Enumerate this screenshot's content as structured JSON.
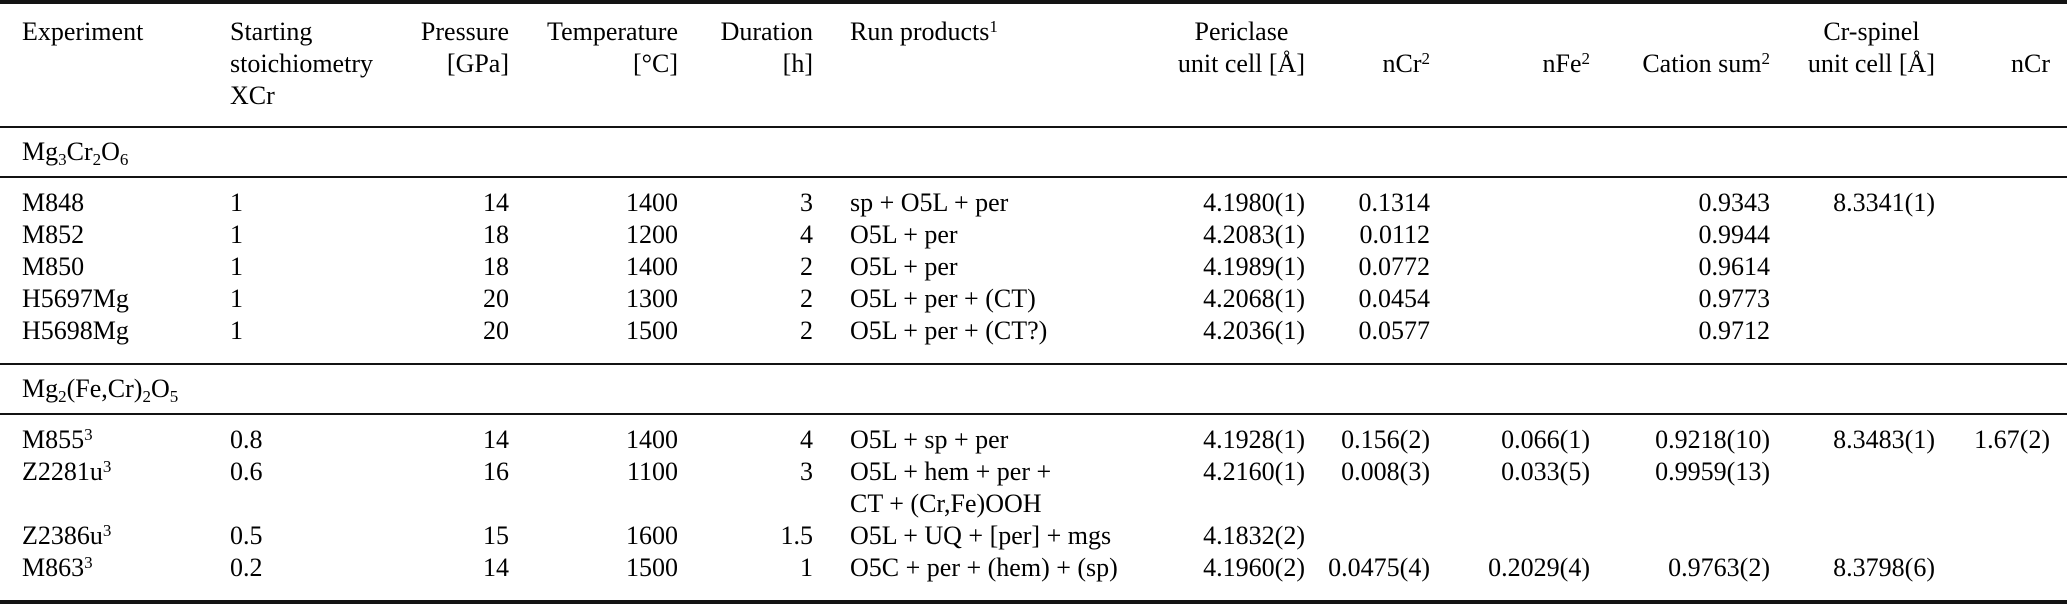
{
  "table": {
    "columns": [
      {
        "id": "experiment",
        "align": "left",
        "header_lines": [
          "Experiment",
          "",
          ""
        ]
      },
      {
        "id": "starting-stoichiometry",
        "align": "left",
        "header_lines": [
          "Starting",
          "stoichiometry",
          "XCr"
        ]
      },
      {
        "id": "pressure",
        "align": "right",
        "header_lines": [
          "Pressure",
          "[GPa]",
          ""
        ]
      },
      {
        "id": "temperature",
        "align": "right",
        "header_lines": [
          "Temperature",
          "[°C]",
          ""
        ]
      },
      {
        "id": "duration",
        "align": "right",
        "header_lines": [
          "Duration",
          "[h]",
          ""
        ]
      },
      {
        "id": "run-products",
        "align": "left",
        "header_lines": [
          "Run products^{1}",
          "",
          ""
        ]
      },
      {
        "id": "periclase-unit-cell",
        "align": "right",
        "center_header": true,
        "header_lines": [
          "Periclase",
          "unit cell [Å]",
          ""
        ]
      },
      {
        "id": "ncr-periclase",
        "align": "right",
        "header_lines": [
          "",
          "nCr^{2}",
          ""
        ]
      },
      {
        "id": "nfe-periclase",
        "align": "right",
        "header_lines": [
          "",
          "nFe^{2}",
          ""
        ]
      },
      {
        "id": "cation-sum",
        "align": "right",
        "header_lines": [
          "",
          "Cation sum^{2}",
          ""
        ]
      },
      {
        "id": "cr-spinel-unit-cell",
        "align": "right",
        "center_header": true,
        "header_lines": [
          "Cr-spinel",
          "unit cell [Å]",
          ""
        ]
      },
      {
        "id": "ncr-spinel",
        "align": "right",
        "header_lines": [
          "",
          "nCr",
          ""
        ]
      }
    ],
    "sections": [
      {
        "label": "Mg_{3}Cr_{2}O_{6}",
        "rows": [
          [
            "M848",
            "1",
            "14",
            "1400",
            "3",
            "sp + O5L + per",
            "4.1980(1)",
            "0.1314",
            "",
            "0.9343",
            "8.3341(1)",
            ""
          ],
          [
            "M852",
            "1",
            "18",
            "1200",
            "4",
            "O5L + per",
            "4.2083(1)",
            "0.0112",
            "",
            "0.9944",
            "",
            ""
          ],
          [
            "M850",
            "1",
            "18",
            "1400",
            "2",
            "O5L + per",
            "4.1989(1)",
            "0.0772",
            "",
            "0.9614",
            "",
            ""
          ],
          [
            "H5697Mg",
            "1",
            "20",
            "1300",
            "2",
            "O5L + per + (CT)",
            "4.2068(1)",
            "0.0454",
            "",
            "0.9773",
            "",
            ""
          ],
          [
            "H5698Mg",
            "1",
            "20",
            "1500",
            "2",
            "O5L + per + (CT?)",
            "4.2036(1)",
            "0.0577",
            "",
            "0.9712",
            "",
            ""
          ]
        ]
      },
      {
        "label": "Mg_{2}(Fe,Cr)_{2}O_{5}",
        "rows": [
          [
            "M855^{3}",
            "0.8",
            "14",
            "1400",
            "4",
            "O5L + sp + per",
            "4.1928(1)",
            "0.156(2)",
            "0.066(1)",
            "0.9218(10)",
            "8.3483(1)",
            "1.67(2)"
          ],
          [
            "Z2281u^{3}",
            "0.6",
            "16",
            "1100",
            "3",
            "O5L + hem + per +\nCT + (Cr,Fe)OOH",
            "4.2160(1)",
            "0.008(3)",
            "0.033(5)",
            "0.9959(13)",
            "",
            ""
          ],
          [
            "Z2386u^{3}",
            "0.5",
            "15",
            "1600",
            "1.5",
            "O5L + UQ + [per] + mgs",
            "4.1832(2)",
            "",
            "",
            "",
            "",
            ""
          ],
          [
            "M863^{3}",
            "0.2",
            "14",
            "1500",
            "1",
            "O5C + per + (hem) + (sp)",
            "4.1960(2)",
            "0.0475(4)",
            "0.2029(4)",
            "0.9763(2)",
            "8.3798(6)",
            ""
          ]
        ]
      }
    ]
  }
}
